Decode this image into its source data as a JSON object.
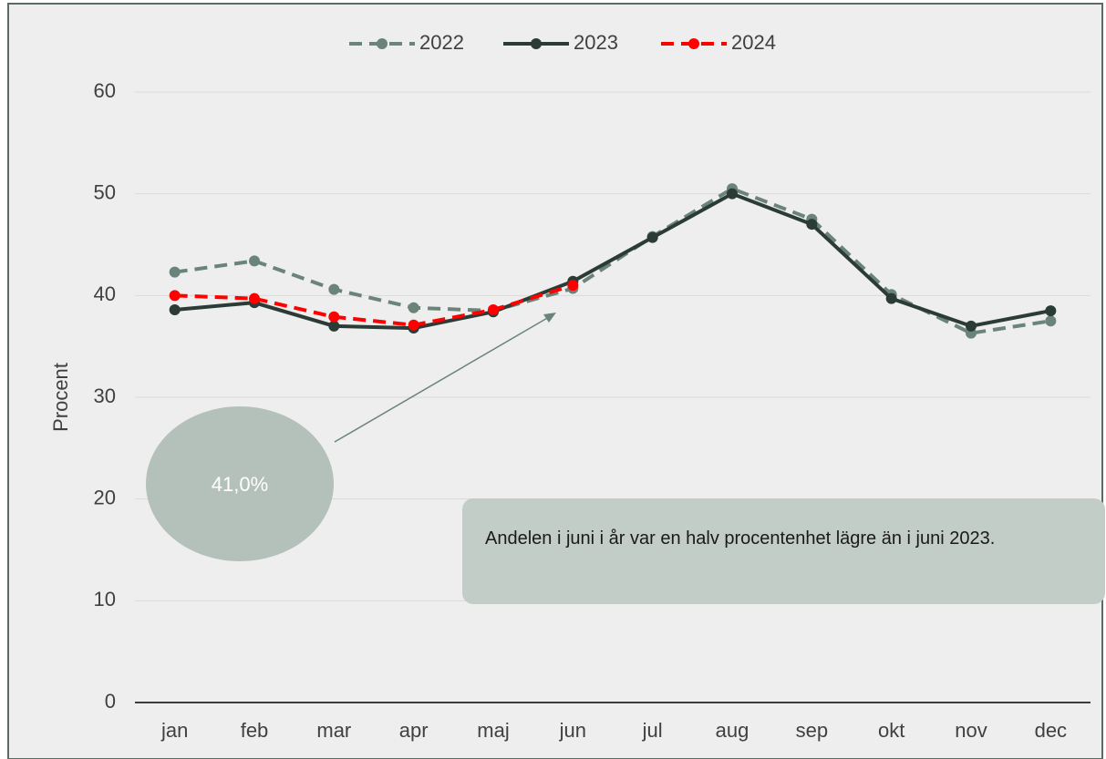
{
  "chart_data": {
    "type": "line",
    "categories": [
      "jan",
      "feb",
      "mar",
      "apr",
      "maj",
      "jun",
      "jul",
      "aug",
      "sep",
      "okt",
      "nov",
      "dec"
    ],
    "series": [
      {
        "name": "2022",
        "color": "#6b8479",
        "dashed": true,
        "values": [
          42.3,
          43.4,
          40.6,
          38.8,
          38.5,
          40.7,
          45.8,
          50.5,
          47.5,
          40.1,
          36.3,
          37.5
        ]
      },
      {
        "name": "2023",
        "color": "#2b3b35",
        "dashed": false,
        "values": [
          38.6,
          39.3,
          37.0,
          36.8,
          38.4,
          41.4,
          45.7,
          50.0,
          47.0,
          39.7,
          37.0,
          38.5
        ]
      },
      {
        "name": "2024",
        "color": "#ff0000",
        "dashed": true,
        "values": [
          40.0,
          39.7,
          37.9,
          37.1,
          38.6,
          41.0,
          null,
          null,
          null,
          null,
          null,
          null
        ]
      }
    ],
    "ylabel": "Procent",
    "ylim": [
      0,
      60
    ],
    "yticks": [
      0,
      10,
      20,
      30,
      40,
      50,
      60
    ],
    "grid": true,
    "legend": "top",
    "annotations": [
      "41,0%",
      "Andelen i juni i år var en halv procentenhet lägre än i juni 2023."
    ]
  }
}
